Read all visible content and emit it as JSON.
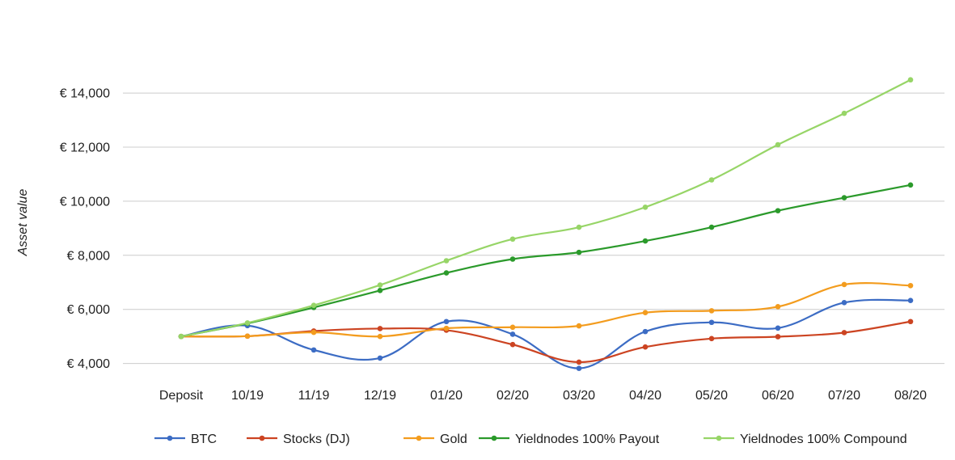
{
  "chart_data": {
    "type": "line",
    "title": "",
    "xlabel": "",
    "ylabel": "Asset value",
    "y_prefix": "€ ",
    "ylim": [
      4000,
      14500
    ],
    "yticks": [
      4000,
      6000,
      8000,
      10000,
      12000,
      14000
    ],
    "ytick_labels": [
      "€ 4,000",
      "€ 6,000",
      "€ 8,000",
      "€ 10,000",
      "€ 12,000",
      "€ 14,000"
    ],
    "grid": true,
    "legend_position": "bottom",
    "categories": [
      "Deposit",
      "10/19",
      "11/19",
      "12/19",
      "01/20",
      "02/20",
      "03/20",
      "04/20",
      "05/20",
      "06/20",
      "07/20",
      "08/20"
    ],
    "series": [
      {
        "name": "BTC",
        "color": "#3c6cc4",
        "values": [
          5000,
          5400,
          4500,
          4200,
          5550,
          5080,
          3820,
          5180,
          5520,
          5310,
          6250,
          6330
        ]
      },
      {
        "name": "Stocks (DJ)",
        "color": "#cc4422",
        "values": [
          5000,
          5010,
          5200,
          5290,
          5230,
          4700,
          4050,
          4610,
          4920,
          4990,
          5140,
          5550
        ]
      },
      {
        "name": "Gold",
        "color": "#f39c1e",
        "values": [
          5000,
          5010,
          5150,
          5000,
          5300,
          5340,
          5390,
          5880,
          5950,
          6100,
          6920,
          6880
        ]
      },
      {
        "name": "Yieldnodes 100% Payout",
        "color": "#2b9a2b",
        "values": [
          5000,
          5480,
          6070,
          6700,
          7350,
          7860,
          8110,
          8530,
          9040,
          9650,
          10130,
          10600
        ]
      },
      {
        "name": "Yieldnodes 100% Compound",
        "color": "#97d567",
        "values": [
          5000,
          5500,
          6150,
          6900,
          7800,
          8600,
          9040,
          9780,
          10790,
          12090,
          13250,
          14490
        ]
      }
    ]
  }
}
